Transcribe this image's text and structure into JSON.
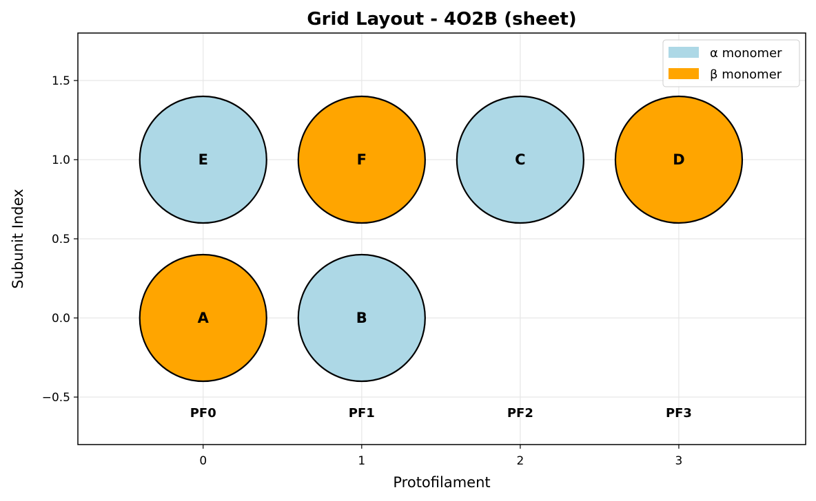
{
  "chart_data": {
    "type": "scatter",
    "title": "Grid Layout - 4O2B (sheet)",
    "xlabel": "Protofilament",
    "ylabel": "Subunit Index",
    "xlim": [
      -0.79,
      3.8
    ],
    "ylim": [
      -0.8,
      1.8
    ],
    "x_ticks": [
      0,
      1,
      2,
      3
    ],
    "x_tick_labels": [
      "0",
      "1",
      "2",
      "3"
    ],
    "y_ticks": [
      -0.5,
      0.0,
      0.5,
      1.0,
      1.5
    ],
    "y_tick_labels": [
      "−0.5",
      "0.0",
      "0.5",
      "1.0",
      "1.5"
    ],
    "grid": true,
    "marker_radius": 0.4,
    "subunits": [
      {
        "label": "A",
        "x": 0,
        "y": 0,
        "type": "beta"
      },
      {
        "label": "B",
        "x": 1,
        "y": 0,
        "type": "alpha"
      },
      {
        "label": "E",
        "x": 0,
        "y": 1,
        "type": "alpha"
      },
      {
        "label": "F",
        "x": 1,
        "y": 1,
        "type": "beta"
      },
      {
        "label": "C",
        "x": 2,
        "y": 1,
        "type": "alpha"
      },
      {
        "label": "D",
        "x": 3,
        "y": 1,
        "type": "beta"
      }
    ],
    "protofilament_labels": [
      {
        "text": "PF0",
        "x": 0,
        "y": -0.6
      },
      {
        "text": "PF1",
        "x": 1,
        "y": -0.6
      },
      {
        "text": "PF2",
        "x": 2,
        "y": -0.6
      },
      {
        "text": "PF3",
        "x": 3,
        "y": -0.6
      }
    ],
    "legend": {
      "placement": "top-right",
      "entries": [
        {
          "key": "alpha",
          "label": "α monomer",
          "color": "#add8e6"
        },
        {
          "key": "beta",
          "label": "β monomer",
          "color": "#ffa500"
        }
      ]
    },
    "colors": {
      "alpha": "#add8e6",
      "beta": "#ffa500",
      "edge": "#000000",
      "grid": "#e6e6e6"
    }
  }
}
